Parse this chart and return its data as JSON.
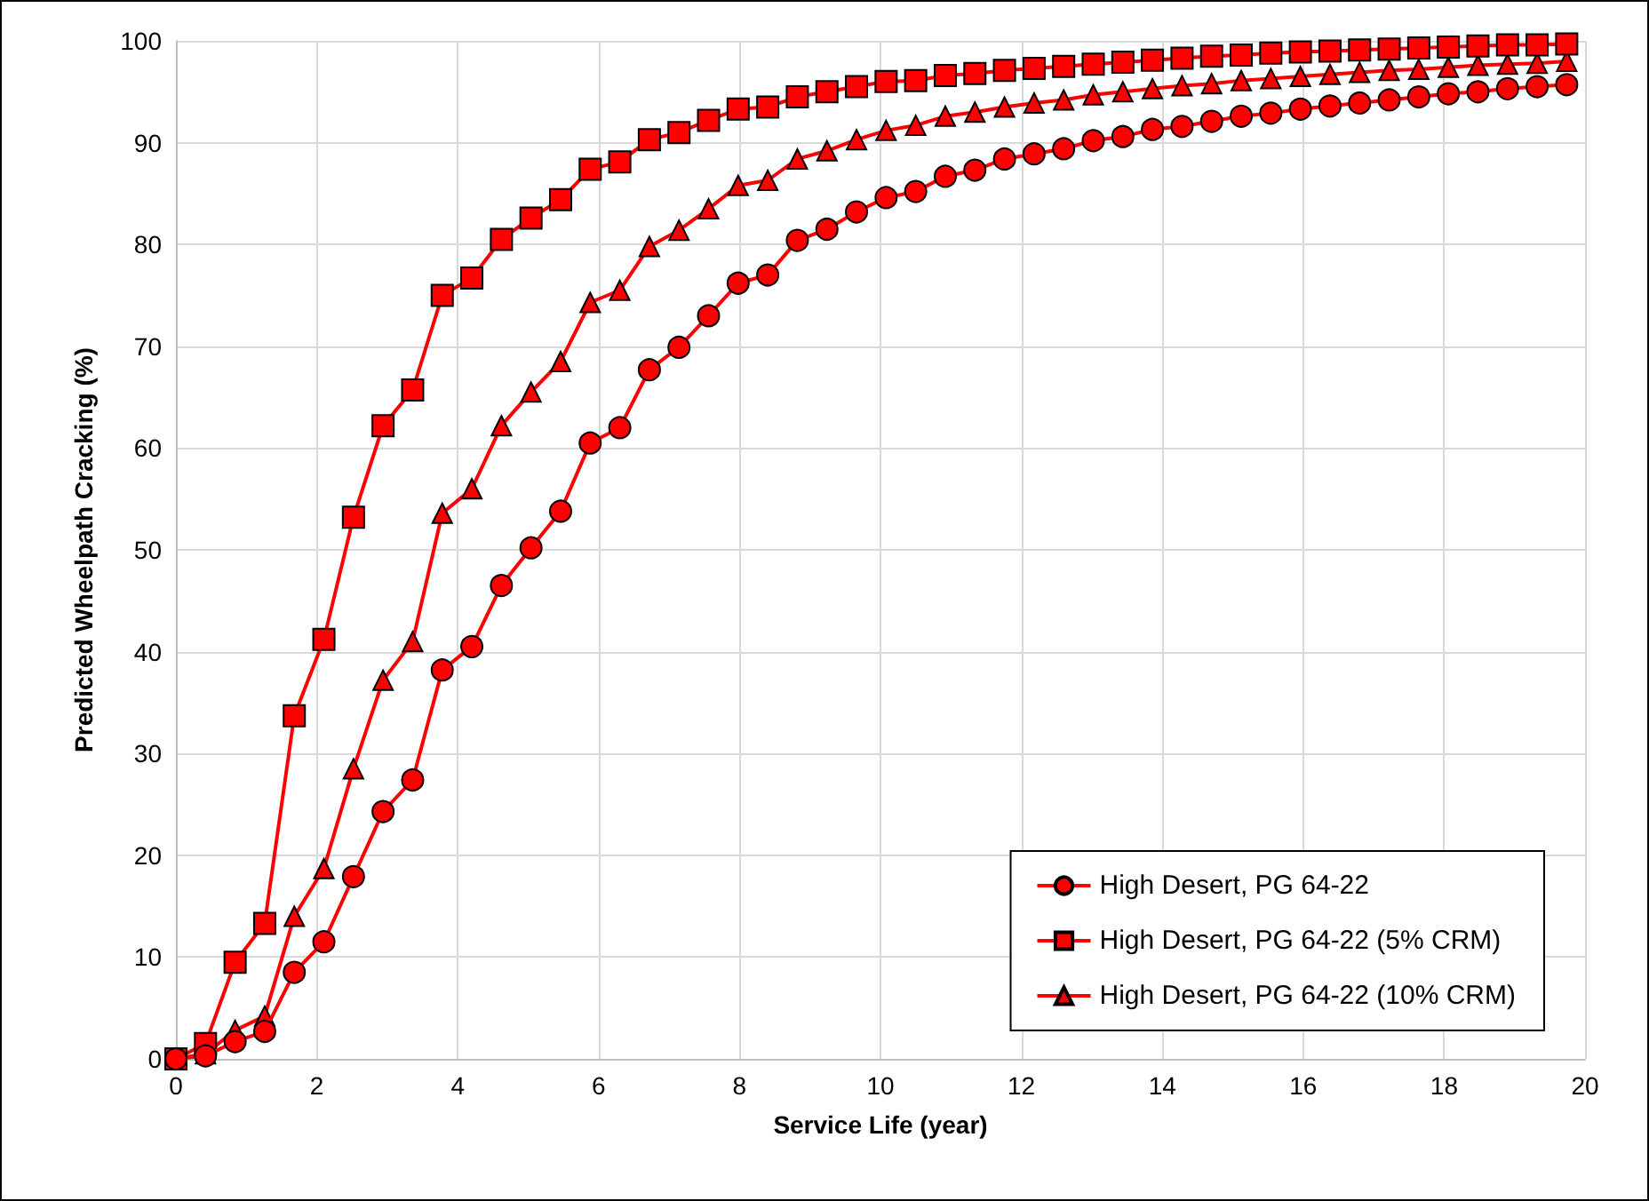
{
  "chart_data": {
    "type": "line",
    "xlabel": "Service Life (year)",
    "ylabel": "Predicted Wheelpath Cracking (%)",
    "x": [
      0,
      0.42,
      0.84,
      1.26,
      1.68,
      2.1,
      2.52,
      2.94,
      3.36,
      3.78,
      4.2,
      4.62,
      5.04,
      5.46,
      5.88,
      6.3,
      6.72,
      7.14,
      7.56,
      7.98,
      8.4,
      8.82,
      9.24,
      9.66,
      10.08,
      10.5,
      10.92,
      11.34,
      11.76,
      12.18,
      12.6,
      13.02,
      13.44,
      13.86,
      14.28,
      14.7,
      15.12,
      15.54,
      15.96,
      16.38,
      16.8,
      17.22,
      17.64,
      18.06,
      18.48,
      18.9,
      19.32,
      19.74
    ],
    "series": [
      {
        "name": "High Desert, PG 64-22",
        "color": "#ff0000",
        "marker": "circle",
        "values": [
          0,
          0.3,
          1.7,
          2.7,
          8.5,
          11.5,
          17.9,
          24.3,
          27.4,
          38.2,
          40.5,
          46.5,
          50.2,
          53.8,
          60.5,
          62,
          67.7,
          69.9,
          73,
          76.2,
          77,
          80.4,
          81.5,
          83.2,
          84.6,
          85.2,
          86.7,
          87.3,
          88.4,
          88.9,
          89.4,
          90.2,
          90.6,
          91.3,
          91.6,
          92.1,
          92.6,
          92.9,
          93.3,
          93.6,
          93.9,
          94.2,
          94.5,
          94.8,
          95,
          95.3,
          95.5,
          95.7
        ]
      },
      {
        "name": "High Desert, PG 64-22 (5% CRM)",
        "color": "#ff0000",
        "marker": "square",
        "values": [
          0,
          1.5,
          9.5,
          13.3,
          33.7,
          41.2,
          53.2,
          62.2,
          65.7,
          75,
          76.7,
          80.5,
          82.6,
          84.4,
          87.4,
          88.1,
          90.3,
          91,
          92.2,
          93.3,
          93.5,
          94.5,
          95,
          95.5,
          96,
          96.1,
          96.6,
          96.8,
          97.1,
          97.3,
          97.5,
          97.7,
          97.9,
          98.1,
          98.3,
          98.5,
          98.6,
          98.8,
          98.9,
          99,
          99.1,
          99.2,
          99.3,
          99.4,
          99.5,
          99.6,
          99.6,
          99.7
        ]
      },
      {
        "name": "High Desert, PG 64-22 (10% CRM)",
        "color": "#ff0000",
        "marker": "triangle",
        "values": [
          0,
          0.5,
          2.8,
          4.2,
          14,
          18.7,
          28.5,
          37.2,
          41,
          53.6,
          56,
          62.2,
          65.5,
          68.5,
          74.3,
          75.5,
          79.8,
          81.4,
          83.5,
          85.8,
          86.3,
          88.4,
          89.2,
          90.3,
          91.2,
          91.7,
          92.6,
          93,
          93.5,
          93.9,
          94.2,
          94.7,
          95,
          95.3,
          95.6,
          95.8,
          96.1,
          96.3,
          96.5,
          96.7,
          96.9,
          97.1,
          97.2,
          97.4,
          97.6,
          97.7,
          97.8,
          98
        ]
      }
    ],
    "xlim": [
      0,
      20
    ],
    "xticks": [
      0,
      2,
      4,
      6,
      8,
      10,
      12,
      14,
      16,
      18,
      20
    ],
    "ylim": [
      0,
      100
    ],
    "yticks": [
      0,
      10,
      20,
      30,
      40,
      50,
      60,
      70,
      80,
      90,
      100
    ],
    "grid": true,
    "legend": "bottom right",
    "line_style": "solid"
  }
}
